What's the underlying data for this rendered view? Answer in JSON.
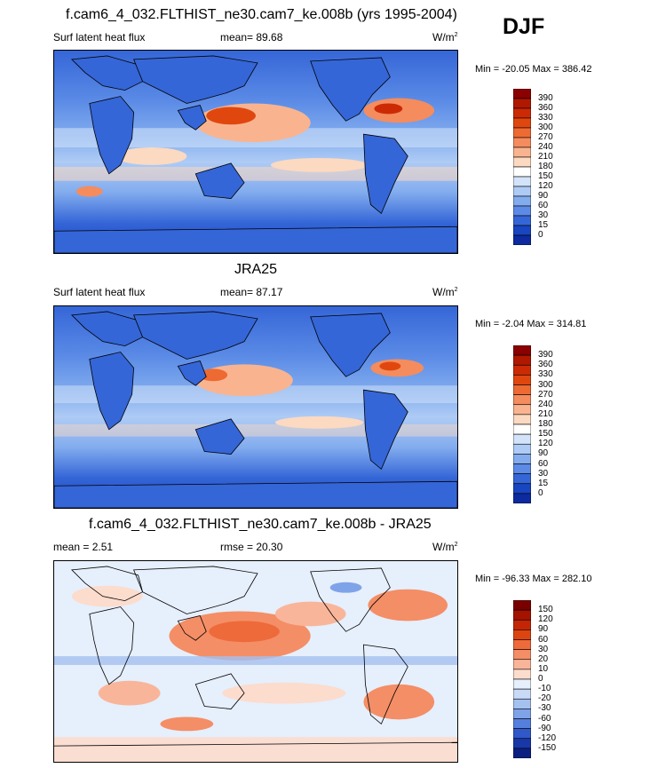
{
  "header": {
    "season": "DJF"
  },
  "panels": [
    {
      "id": "model",
      "title": "f.cam6_4_032.FLTHIST_ne30.cam7_ke.008b (yrs 1995-2004)",
      "left_label": "Surf latent heat flux",
      "mid_label": "mean=  89.68",
      "units": "W/m",
      "units_sup": "2",
      "minmax": "Min = -20.05 Max = 386.42",
      "colorbar": {
        "labels": [
          "390",
          "360",
          "330",
          "300",
          "270",
          "240",
          "210",
          "180",
          "150",
          "120",
          "90",
          "60",
          "30",
          "15",
          "0"
        ],
        "colors": [
          "#8b0000",
          "#b01800",
          "#cc2a05",
          "#e0470e",
          "#ee6a33",
          "#f48c5e",
          "#f9b48f",
          "#fcd9c1",
          "#ffffff",
          "#d3e3fa",
          "#aecbf5",
          "#82acee",
          "#5b8be6",
          "#3566d7",
          "#1845c0",
          "#0d2a9e"
        ]
      }
    },
    {
      "id": "obs",
      "title": "JRA25",
      "left_label": "Surf latent heat flux",
      "mid_label": "mean=  87.17",
      "units": "W/m",
      "units_sup": "2",
      "minmax": "Min =  -2.04 Max = 314.81",
      "colorbar": {
        "labels": [
          "390",
          "360",
          "330",
          "300",
          "270",
          "240",
          "210",
          "180",
          "150",
          "120",
          "90",
          "60",
          "30",
          "15",
          "0"
        ],
        "colors": [
          "#8b0000",
          "#b01800",
          "#cc2a05",
          "#e0470e",
          "#ee6a33",
          "#f48c5e",
          "#f9b48f",
          "#fcd9c1",
          "#ffffff",
          "#d3e3fa",
          "#aecbf5",
          "#82acee",
          "#5b8be6",
          "#3566d7",
          "#1845c0",
          "#0d2a9e"
        ]
      }
    },
    {
      "id": "diff",
      "title": "f.cam6_4_032.FLTHIST_ne30.cam7_ke.008b - JRA25",
      "left_label": "mean =   2.51",
      "mid_label": "rmse =  20.30",
      "units": "W/m",
      "units_sup": "2",
      "minmax": "Min = -96.33 Max = 282.10",
      "colorbar": {
        "labels": [
          "150",
          "120",
          "90",
          "60",
          "30",
          "20",
          "10",
          "0",
          "-10",
          "-20",
          "-30",
          "-60",
          "-90",
          "-120",
          "-150"
        ],
        "colors": [
          "#7a0000",
          "#a41200",
          "#c42605",
          "#dd4510",
          "#ee6a3a",
          "#f48e66",
          "#f9b59a",
          "#fcdccd",
          "#e6effc",
          "#c9daf6",
          "#a5c1ef",
          "#7fa3e8",
          "#557fdc",
          "#3058c8",
          "#1838a8",
          "#0a1f80"
        ]
      }
    }
  ]
}
